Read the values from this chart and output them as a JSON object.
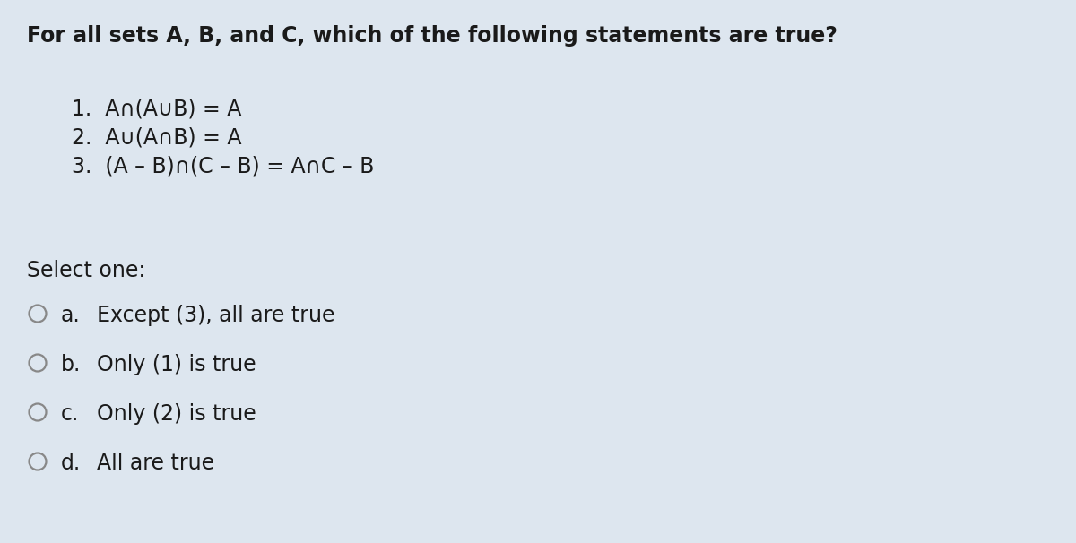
{
  "background_color": "#dde6ef",
  "title": "For all sets A, B, and C, which of the following statements are true?",
  "title_fontsize": 17,
  "title_fontweight": "bold",
  "statements": [
    "1.  A∩(A∪B) = A",
    "2.  A∪(A∩B) = A",
    "3.  (A – B)∩(C – B) = A∩C – B"
  ],
  "statements_fontsize": 17,
  "select_label": "Select one:",
  "select_fontsize": 17,
  "options": [
    [
      "a.",
      "Except (3), all are true"
    ],
    [
      "b.",
      "Only (1) is true"
    ],
    [
      "c.",
      "Only (2) is true"
    ],
    [
      "d.",
      "All are true"
    ]
  ],
  "options_fontsize": 17,
  "circle_color": "#888888",
  "text_color": "#1a1a1a"
}
